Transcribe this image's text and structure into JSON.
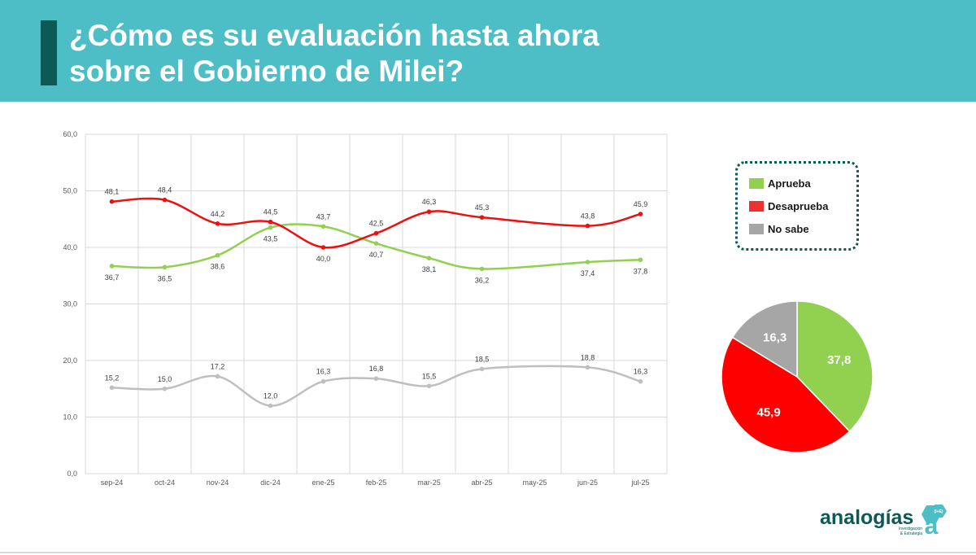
{
  "header": {
    "title_line1": "¿Cómo es su evaluación hasta ahora",
    "title_line2": "sobre el Gobierno de Milei?"
  },
  "chart_data": [
    {
      "type": "line",
      "categories": [
        "sep-24",
        "oct-24",
        "nov-24",
        "dic-24",
        "ene-25",
        "feb-25",
        "mar-25",
        "abr-25",
        "may-25",
        "jun-25",
        "jul-25"
      ],
      "ylim": [
        0,
        60
      ],
      "yticks": [
        "0,0",
        "10,0",
        "20,0",
        "30,0",
        "40,0",
        "50,0",
        "60,0"
      ],
      "ytick_values": [
        0,
        10,
        20,
        30,
        40,
        50,
        60
      ],
      "grid": true,
      "series": [
        {
          "name": "Aprueba",
          "color": "#92d050",
          "values": [
            36.7,
            36.5,
            38.6,
            43.5,
            43.7,
            40.7,
            38.1,
            36.2,
            null,
            37.4,
            37.8
          ],
          "labels": [
            "36,7",
            "36,5",
            "38,6",
            "43,5",
            "43,7",
            "40,7",
            "38,1",
            "36,2",
            "",
            "37,4",
            "37,8"
          ]
        },
        {
          "name": "Desaprueba",
          "color": "#ee1010",
          "values": [
            48.1,
            48.4,
            44.2,
            44.5,
            40.0,
            42.5,
            46.3,
            45.3,
            null,
            43.8,
            45.9
          ],
          "labels": [
            "48,1",
            "48,4",
            "44,2",
            "44,5",
            "40,0",
            "42,5",
            "46,3",
            "45,3",
            "",
            "43,8",
            "45,9"
          ]
        },
        {
          "name": "No sabe",
          "color": "#bfbfbf",
          "values": [
            15.2,
            15.0,
            17.2,
            12.0,
            16.3,
            16.8,
            15.5,
            18.5,
            null,
            18.8,
            16.3
          ],
          "labels": [
            "15,2",
            "15,0",
            "17,2",
            "12,0",
            "16,3",
            "16,8",
            "15,5",
            "18,5",
            "",
            "18,8",
            "16,3"
          ]
        }
      ]
    },
    {
      "type": "pie",
      "slices": [
        {
          "name": "Aprueba",
          "value": 37.8,
          "label": "37,8",
          "color": "#92d050"
        },
        {
          "name": "Desaprueba",
          "value": 45.9,
          "label": "45,9",
          "color": "#ff0000"
        },
        {
          "name": "No sabe",
          "value": 16.3,
          "label": "16,3",
          "color": "#a6a6a6"
        }
      ]
    }
  ],
  "legend": {
    "items": [
      {
        "label": "Aprueba",
        "color": "#92d050"
      },
      {
        "label": "Desaprueba",
        "color": "#ee3030"
      },
      {
        "label": "No sabe",
        "color": "#a6a6a6"
      }
    ]
  },
  "logo": {
    "name": "analogías",
    "tagline_1": "Investigación",
    "tagline_2": "& Estrategia",
    "mark_letter": "a",
    "mark_superscript": "(I+E)"
  }
}
